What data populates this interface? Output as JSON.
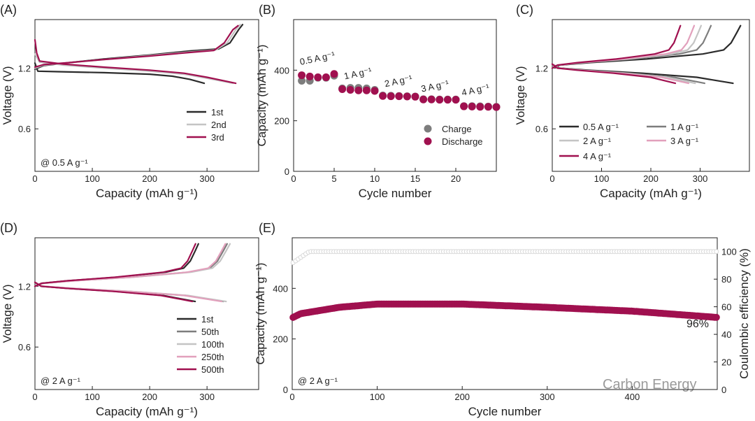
{
  "figure": {
    "watermark": "Carbon Energy",
    "colors": {
      "black": "#2b2b2b",
      "gray": "#7d7d7d",
      "lightgray": "#c4c4c4",
      "pink": "#e2a0bc",
      "magenta": "#a0104f",
      "ce": "#d8d8d8"
    }
  },
  "chart_data": [
    {
      "id": "A",
      "panel_label": "(A)",
      "type": "line",
      "xlabel": "Capacity (mAh g⁻¹)",
      "ylabel": "Voltage (V)",
      "xlim": [
        0,
        390
      ],
      "ylim": [
        0.18,
        1.68
      ],
      "xticks": [
        0,
        100,
        200,
        300
      ],
      "yticks": [
        0.6,
        1.2
      ],
      "note": "@ 0.5 A g⁻¹",
      "series": [
        {
          "name": "1st",
          "color": "#2b2b2b",
          "charge": [
            [
              0,
              1.19
            ],
            [
              15,
              1.225
            ],
            [
              60,
              1.255
            ],
            [
              120,
              1.29
            ],
            [
              200,
              1.33
            ],
            [
              270,
              1.37
            ],
            [
              320,
              1.39
            ],
            [
              340,
              1.45
            ],
            [
              355,
              1.58
            ],
            [
              362,
              1.63
            ]
          ],
          "discharge": [
            [
              0,
              1.25
            ],
            [
              5,
              1.17
            ],
            [
              40,
              1.165
            ],
            [
              120,
              1.155
            ],
            [
              200,
              1.14
            ],
            [
              240,
              1.12
            ],
            [
              270,
              1.09
            ],
            [
              295,
              1.05
            ]
          ]
        },
        {
          "name": "2nd",
          "color": "#c4c4c4",
          "charge": [
            [
              0,
              1.2
            ],
            [
              15,
              1.23
            ],
            [
              60,
              1.255
            ],
            [
              120,
              1.285
            ],
            [
              200,
              1.325
            ],
            [
              270,
              1.36
            ],
            [
              315,
              1.38
            ],
            [
              335,
              1.45
            ],
            [
              350,
              1.58
            ],
            [
              358,
              1.63
            ]
          ],
          "discharge": [
            [
              0,
              1.34
            ],
            [
              8,
              1.26
            ],
            [
              50,
              1.23
            ],
            [
              120,
              1.2
            ],
            [
              200,
              1.17
            ],
            [
              260,
              1.14
            ],
            [
              300,
              1.1
            ],
            [
              345,
              1.05
            ]
          ]
        },
        {
          "name": "3rd",
          "color": "#a0104f",
          "charge": [
            [
              0,
              1.21
            ],
            [
              15,
              1.235
            ],
            [
              60,
              1.255
            ],
            [
              120,
              1.285
            ],
            [
              200,
              1.32
            ],
            [
              270,
              1.355
            ],
            [
              312,
              1.375
            ],
            [
              330,
              1.45
            ],
            [
              345,
              1.58
            ],
            [
              354,
              1.62
            ]
          ],
          "discharge": [
            [
              0,
              1.48
            ],
            [
              3,
              1.35
            ],
            [
              8,
              1.27
            ],
            [
              50,
              1.24
            ],
            [
              120,
              1.21
            ],
            [
              200,
              1.18
            ],
            [
              260,
              1.15
            ],
            [
              300,
              1.11
            ],
            [
              350,
              1.05
            ]
          ]
        }
      ]
    },
    {
      "id": "B",
      "panel_label": "(B)",
      "type": "scatter",
      "xlabel": "Cycle number",
      "ylabel": "Capacity (mAh g⁻¹)",
      "xlim": [
        0,
        25
      ],
      "ylim": [
        0,
        600
      ],
      "xticks": [
        0,
        5,
        10,
        15,
        20
      ],
      "yticks": [
        0,
        200,
        400
      ],
      "rate_labels": [
        {
          "text": "0.5 A g⁻¹",
          "x": 3,
          "y": 435
        },
        {
          "text": "1 A g⁻¹",
          "x": 8,
          "y": 375
        },
        {
          "text": "2 A g⁻¹",
          "x": 13,
          "y": 345
        },
        {
          "text": "3 A g⁻¹",
          "x": 17.5,
          "y": 325
        },
        {
          "text": "4 A g⁻¹",
          "x": 22.5,
          "y": 310
        }
      ],
      "series": [
        {
          "name": "Charge",
          "color": "#7d7d7d",
          "x": [
            1,
            2,
            3,
            4,
            5,
            6,
            7,
            8,
            9,
            10,
            11,
            12,
            13,
            14,
            15,
            16,
            17,
            18,
            19,
            20,
            21,
            22,
            23,
            24,
            25
          ],
          "values": [
            358,
            358,
            370,
            370,
            378,
            328,
            330,
            330,
            328,
            322,
            300,
            299,
            298,
            297,
            296,
            285,
            285,
            284,
            284,
            284,
            258,
            258,
            257,
            256,
            255
          ]
        },
        {
          "name": "Discharge",
          "color": "#a0104f",
          "x": [
            1,
            2,
            3,
            4,
            5,
            6,
            7,
            8,
            9,
            10,
            11,
            12,
            13,
            14,
            15,
            16,
            17,
            18,
            19,
            20,
            21,
            22,
            23,
            24,
            25
          ],
          "values": [
            380,
            375,
            372,
            372,
            385,
            325,
            322,
            320,
            320,
            318,
            298,
            297,
            297,
            296,
            295,
            284,
            284,
            283,
            283,
            283,
            257,
            256,
            255,
            255,
            254
          ]
        }
      ]
    },
    {
      "id": "C",
      "panel_label": "(C)",
      "type": "line",
      "xlabel": "Capacity (mAh g⁻¹)",
      "ylabel": "Voltage (V)",
      "xlim": [
        0,
        400
      ],
      "ylim": [
        0.18,
        1.68
      ],
      "xticks": [
        0,
        100,
        200,
        300
      ],
      "yticks": [
        0.6,
        1.2
      ],
      "series": [
        {
          "name": "0.5 A g⁻¹",
          "color": "#2b2b2b",
          "max": 382
        },
        {
          "name": "1 A g⁻¹",
          "color": "#7d7d7d",
          "max": 322
        },
        {
          "name": "2 A g⁻¹",
          "color": "#c4c4c4",
          "max": 302
        },
        {
          "name": "3 A g⁻¹",
          "color": "#e2a0bc",
          "max": 288
        },
        {
          "name": "4 A g⁻¹",
          "color": "#a0104f",
          "max": 260
        }
      ]
    },
    {
      "id": "D",
      "panel_label": "(D)",
      "type": "line",
      "xlabel": "Capacity (mAh g⁻¹)",
      "ylabel": "Voltage (V)",
      "xlim": [
        0,
        390
      ],
      "ylim": [
        0.18,
        1.68
      ],
      "xticks": [
        0,
        100,
        200,
        300
      ],
      "yticks": [
        0.6,
        1.2
      ],
      "note": "@ 2 A g⁻¹",
      "series": [
        {
          "name": "1st",
          "color": "#2b2b2b",
          "max": 285
        },
        {
          "name": "50th",
          "color": "#7d7d7d",
          "max": 335
        },
        {
          "name": "100th",
          "color": "#c4c4c4",
          "max": 340
        },
        {
          "name": "250th",
          "color": "#e2a0bc",
          "max": 332
        },
        {
          "name": "500th",
          "color": "#a0104f",
          "max": 280
        }
      ]
    },
    {
      "id": "E",
      "panel_label": "(E)",
      "type": "scatter",
      "xlabel": "Cycle number",
      "ylabel": "Capacity (mAh g⁻¹)",
      "y2label": "Coulombic efficiency (%)",
      "xlim": [
        0,
        500
      ],
      "ylim": [
        0,
        600
      ],
      "y2lim": [
        0,
        110
      ],
      "xticks": [
        0,
        100,
        200,
        300,
        400
      ],
      "yticks": [
        0,
        200,
        400
      ],
      "y2ticks": [
        0,
        20,
        40,
        60,
        80,
        100
      ],
      "note": "@ 2 A g⁻¹",
      "retention_label": "96%",
      "capacity_keypoints": [
        [
          1,
          285
        ],
        [
          10,
          300
        ],
        [
          55,
          325
        ],
        [
          100,
          338
        ],
        [
          200,
          338
        ],
        [
          300,
          325
        ],
        [
          400,
          310
        ],
        [
          500,
          285
        ]
      ],
      "ce_keypoints": [
        [
          1,
          92
        ],
        [
          20,
          100
        ],
        [
          500,
          100
        ]
      ]
    }
  ]
}
